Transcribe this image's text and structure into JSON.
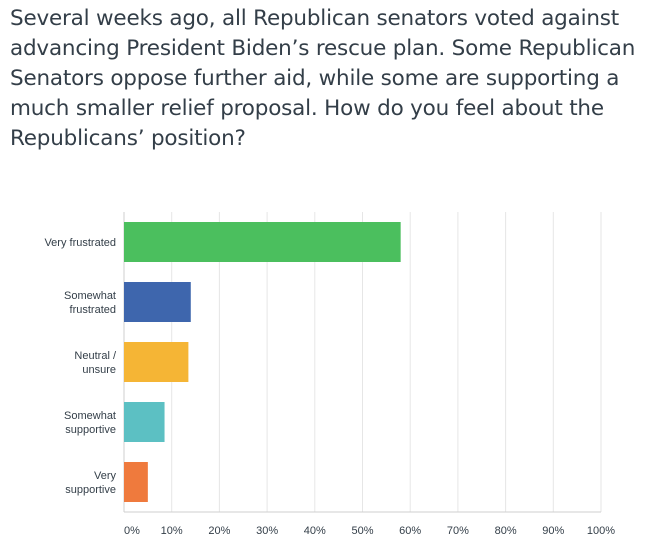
{
  "question": "Several weeks ago, all Republican senators voted against advancing President Biden’s rescue plan. Some Republican Senators oppose further aid, while some are supporting a much smaller relief proposal. How do you feel about the Republicans’ position?",
  "chart_data": {
    "type": "bar",
    "orientation": "horizontal",
    "title": "",
    "xlabel": "",
    "ylabel": "",
    "xlim": [
      0,
      100
    ],
    "grid": true,
    "categories": [
      [
        "Very frustrated"
      ],
      [
        "Somewhat",
        "frustrated"
      ],
      [
        "Neutral /",
        "unsure"
      ],
      [
        "Somewhat",
        "supportive"
      ],
      [
        "Very",
        "supportive"
      ]
    ],
    "values": [
      58,
      14,
      13.5,
      8.5,
      5
    ],
    "colors": [
      "#4bbf5e",
      "#3e66ad",
      "#f5b535",
      "#5cc0c3",
      "#ef7a3d"
    ],
    "x_ticks": [
      "0%",
      "10%",
      "20%",
      "30%",
      "40%",
      "50%",
      "60%",
      "70%",
      "80%",
      "90%",
      "100%"
    ]
  }
}
